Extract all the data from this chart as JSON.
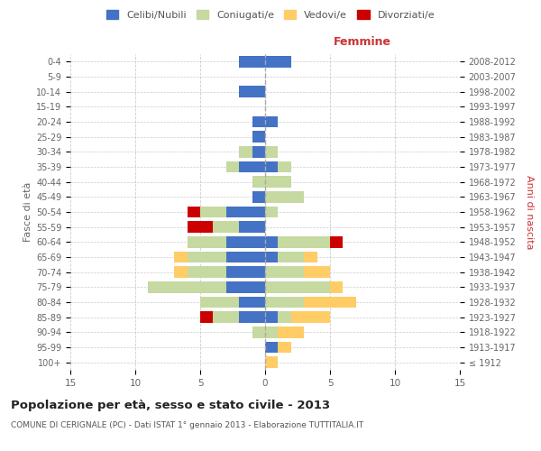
{
  "age_groups": [
    "100+",
    "95-99",
    "90-94",
    "85-89",
    "80-84",
    "75-79",
    "70-74",
    "65-69",
    "60-64",
    "55-59",
    "50-54",
    "45-49",
    "40-44",
    "35-39",
    "30-34",
    "25-29",
    "20-24",
    "15-19",
    "10-14",
    "5-9",
    "0-4"
  ],
  "birth_years": [
    "≤ 1912",
    "1913-1917",
    "1918-1922",
    "1923-1927",
    "1928-1932",
    "1933-1937",
    "1938-1942",
    "1943-1947",
    "1948-1952",
    "1953-1957",
    "1958-1962",
    "1963-1967",
    "1968-1972",
    "1973-1977",
    "1978-1982",
    "1983-1987",
    "1988-1992",
    "1993-1997",
    "1998-2002",
    "2003-2007",
    "2008-2012"
  ],
  "males": {
    "celibi": [
      0,
      0,
      0,
      2,
      2,
      3,
      3,
      3,
      3,
      2,
      3,
      1,
      0,
      2,
      1,
      1,
      1,
      0,
      2,
      0,
      2
    ],
    "coniugati": [
      0,
      0,
      1,
      2,
      3,
      6,
      3,
      3,
      3,
      2,
      2,
      0,
      1,
      1,
      1,
      0,
      0,
      0,
      0,
      0,
      0
    ],
    "vedovi": [
      0,
      0,
      0,
      0,
      0,
      0,
      1,
      1,
      0,
      0,
      0,
      0,
      0,
      0,
      0,
      0,
      0,
      0,
      0,
      0,
      0
    ],
    "divorziati": [
      0,
      0,
      0,
      1,
      0,
      0,
      0,
      0,
      0,
      2,
      1,
      0,
      0,
      0,
      0,
      0,
      0,
      0,
      0,
      0,
      0
    ]
  },
  "females": {
    "nubili": [
      0,
      1,
      0,
      1,
      0,
      0,
      0,
      1,
      1,
      0,
      0,
      0,
      0,
      1,
      0,
      0,
      1,
      0,
      0,
      0,
      2
    ],
    "coniugate": [
      0,
      0,
      1,
      1,
      3,
      5,
      3,
      2,
      4,
      0,
      1,
      3,
      2,
      1,
      1,
      0,
      0,
      0,
      0,
      0,
      0
    ],
    "vedove": [
      1,
      1,
      2,
      3,
      4,
      1,
      2,
      1,
      0,
      0,
      0,
      0,
      0,
      0,
      0,
      0,
      0,
      0,
      0,
      0,
      0
    ],
    "divorziate": [
      0,
      0,
      0,
      0,
      0,
      0,
      0,
      0,
      1,
      0,
      0,
      0,
      0,
      0,
      0,
      0,
      0,
      0,
      0,
      0,
      0
    ]
  },
  "colors": {
    "celibi_nubili": "#4472C4",
    "coniugati": "#C5D9A0",
    "vedovi": "#FFCC66",
    "divorziati": "#CC0000"
  },
  "title": "Popolazione per età, sesso e stato civile - 2013",
  "subtitle": "COMUNE DI CERIGNALE (PC) - Dati ISTAT 1° gennaio 2013 - Elaborazione TUTTITALIA.IT",
  "xlabel_right": "Femmine",
  "ylabel_left": "Fasce di età",
  "ylabel_right": "Anni di nascita",
  "xlim": 15,
  "legend_labels": [
    "Celibi/Nubili",
    "Coniugati/e",
    "Vedovi/e",
    "Divorziati/e"
  ],
  "bg_color": "#ffffff",
  "grid_color": "#cccccc"
}
